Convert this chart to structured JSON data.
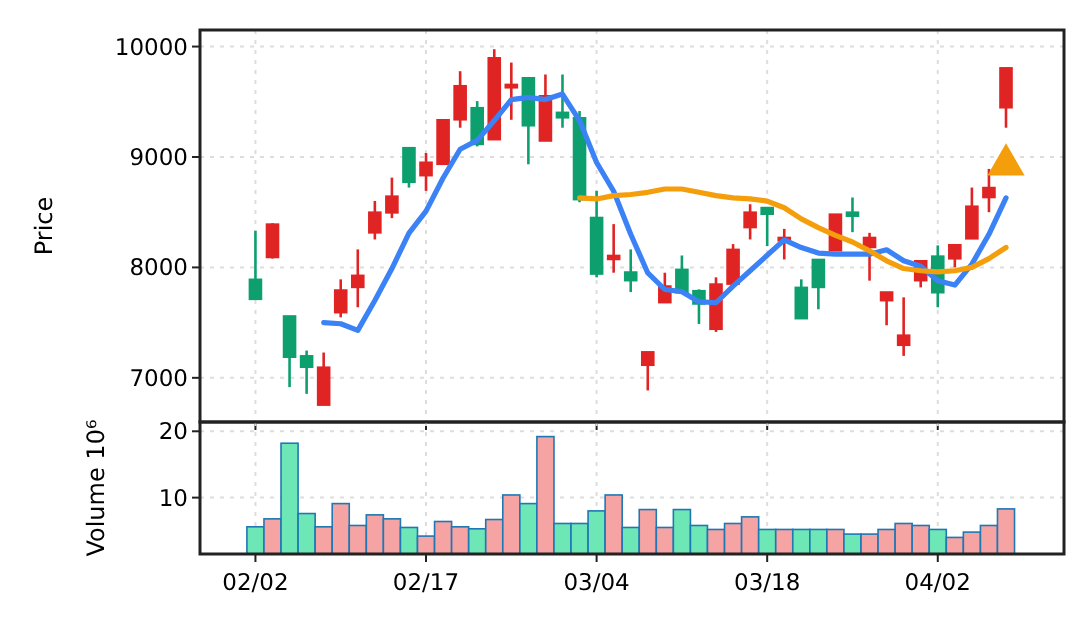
{
  "chart_data": [
    {
      "type": "candlestick",
      "ylabel": "Price",
      "ylim": [
        6600,
        10150
      ],
      "yticks": [
        7000,
        8000,
        9000,
        10000
      ],
      "grid": true,
      "tick_labels": "y",
      "categories": [
        null,
        null,
        null,
        null,
        null,
        null,
        null,
        null,
        null,
        null,
        null,
        null,
        null,
        null,
        null,
        null,
        null,
        null,
        null,
        null,
        null,
        null,
        null,
        null,
        null,
        null,
        null,
        null,
        null,
        null,
        null,
        null,
        null,
        null,
        null,
        null,
        null,
        null,
        null,
        null,
        null,
        null,
        null,
        null,
        null
      ],
      "ohlc": [
        [
          7892,
          8331,
          7711,
          7711
        ],
        [
          8090,
          8400,
          8080,
          8392
        ],
        [
          7560,
          7560,
          6916,
          7187
        ],
        [
          7199,
          7247,
          6855,
          7096
        ],
        [
          6753,
          7229,
          6753,
          7096
        ],
        [
          7590,
          7892,
          7548,
          7795
        ],
        [
          7819,
          8163,
          7639,
          7928
        ],
        [
          8313,
          8602,
          8253,
          8500
        ],
        [
          8494,
          8813,
          8446,
          8645
        ],
        [
          9084,
          9084,
          8723,
          8771
        ],
        [
          8831,
          9036,
          8693,
          8952
        ],
        [
          8934,
          9337,
          8934,
          9337
        ],
        [
          9337,
          9777,
          9265,
          9645
        ],
        [
          9446,
          9506,
          9096,
          9114
        ],
        [
          9157,
          9976,
          9157,
          9898
        ],
        [
          9627,
          9855,
          9337,
          9657
        ],
        [
          9717,
          9717,
          8934,
          9283
        ],
        [
          9145,
          9747,
          9145,
          9554
        ],
        [
          9404,
          9747,
          9265,
          9355
        ],
        [
          9355,
          9416,
          8590,
          8614
        ],
        [
          8452,
          8693,
          7910,
          7940
        ],
        [
          8072,
          8392,
          7952,
          8108
        ],
        [
          7958,
          8163,
          7777,
          7880
        ],
        [
          7114,
          7235,
          6886,
          7235
        ],
        [
          7681,
          7952,
          7681,
          7831
        ],
        [
          7982,
          8108,
          7771,
          7771
        ],
        [
          7789,
          7801,
          7488,
          7669
        ],
        [
          7440,
          7910,
          7416,
          7849
        ],
        [
          7849,
          8211,
          7849,
          8163
        ],
        [
          8361,
          8572,
          8253,
          8500
        ],
        [
          8542,
          8542,
          8193,
          8482
        ],
        [
          8241,
          8349,
          8072,
          8271
        ],
        [
          7819,
          7892,
          7536,
          7536
        ],
        [
          8072,
          8072,
          7621,
          7819
        ],
        [
          8151,
          8482,
          8151,
          8482
        ],
        [
          8500,
          8633,
          8319,
          8464
        ],
        [
          8181,
          8313,
          7880,
          8271
        ],
        [
          7699,
          7777,
          7476,
          7777
        ],
        [
          7295,
          7729,
          7199,
          7386
        ],
        [
          7880,
          8060,
          7819,
          8060
        ],
        [
          8102,
          8199,
          7639,
          7771
        ],
        [
          8078,
          8205,
          8000,
          8205
        ],
        [
          8259,
          8723,
          8259,
          8554
        ],
        [
          8633,
          8892,
          8500,
          8723
        ],
        [
          9446,
          9807,
          9265,
          9807
        ]
      ],
      "colors": [
        "#0e9f6e",
        "#e02424",
        "#0e9f6e",
        "#0e9f6e",
        "#e02424",
        "#e02424",
        "#e02424",
        "#e02424",
        "#e02424",
        "#0e9f6e",
        "#e02424",
        "#e02424",
        "#e02424",
        "#0e9f6e",
        "#e02424",
        "#e02424",
        "#0e9f6e",
        "#e02424",
        "#0e9f6e",
        "#0e9f6e",
        "#0e9f6e",
        "#e02424",
        "#0e9f6e",
        "#e02424",
        "#e02424",
        "#0e9f6e",
        "#0e9f6e",
        "#e02424",
        "#e02424",
        "#e02424",
        "#0e9f6e",
        "#e02424",
        "#0e9f6e",
        "#0e9f6e",
        "#e02424",
        "#0e9f6e",
        "#e02424",
        "#e02424",
        "#e02424",
        "#e02424",
        "#0e9f6e",
        "#e02424",
        "#e02424",
        "#e02424",
        "#e02424"
      ],
      "series": [
        {
          "type": "line",
          "color": "#3b82f6",
          "values": [
            null,
            null,
            null,
            null,
            7500,
            7490,
            7430,
            7700,
            7990,
            8310,
            8510,
            8810,
            9070,
            9150,
            9330,
            9520,
            9540,
            9520,
            9570,
            9330,
            8950,
            8690,
            8300,
            7950,
            7800,
            7780,
            7690,
            7680,
            7830,
            7970,
            8110,
            8250,
            8180,
            8130,
            8120,
            8120,
            8120,
            8160,
            8060,
            8010,
            7880,
            7840,
            8030,
            8300,
            8630
          ]
        },
        {
          "type": "line",
          "color": "#f59e0b",
          "values": [
            null,
            null,
            null,
            null,
            null,
            null,
            null,
            null,
            null,
            null,
            null,
            null,
            null,
            null,
            null,
            null,
            null,
            null,
            null,
            8630,
            8620,
            8650,
            8660,
            8680,
            8710,
            8710,
            8680,
            8650,
            8630,
            8620,
            8600,
            8540,
            8440,
            8360,
            8290,
            8230,
            8150,
            8060,
            7990,
            7970,
            7960,
            7970,
            8000,
            8080,
            8180
          ]
        },
        {
          "type": "scatter",
          "marker": "triangle",
          "color": "#f59e0b",
          "values": [
            null,
            null,
            null,
            null,
            null,
            null,
            null,
            null,
            null,
            null,
            null,
            null,
            null,
            null,
            null,
            null,
            null,
            null,
            null,
            null,
            null,
            null,
            null,
            null,
            null,
            null,
            null,
            null,
            null,
            null,
            null,
            null,
            null,
            null,
            null,
            null,
            null,
            null,
            null,
            null,
            null,
            null,
            null,
            null,
            8930
          ]
        }
      ]
    },
    {
      "type": "bar",
      "ylabel": "Volume  10⁶",
      "ylim": [
        1.5,
        21.4
      ],
      "yticks": [
        10,
        20
      ],
      "grid": true,
      "categories": [
        "02/02",
        null,
        null,
        null,
        null,
        null,
        null,
        null,
        null,
        null,
        "02/17",
        null,
        null,
        null,
        null,
        null,
        null,
        null,
        null,
        null,
        "03/04",
        null,
        null,
        null,
        null,
        null,
        null,
        null,
        null,
        null,
        "03/18",
        null,
        null,
        null,
        null,
        null,
        null,
        null,
        null,
        null,
        "04/02",
        null,
        null,
        null,
        null
      ],
      "values": [
        5.6,
        6.8,
        18.2,
        7.6,
        5.6,
        9.1,
        5.8,
        7.4,
        6.8,
        5.5,
        4.2,
        6.4,
        5.6,
        5.3,
        6.7,
        10.4,
        9.1,
        19.2,
        6.1,
        6.1,
        8.0,
        10.4,
        5.5,
        8.2,
        5.5,
        8.2,
        5.8,
        5.2,
        6.1,
        7.1,
        5.2,
        5.2,
        5.2,
        5.2,
        5.2,
        4.5,
        4.5,
        5.2,
        6.1,
        5.8,
        5.2,
        4.0,
        4.8,
        5.8,
        8.3
      ],
      "colors": [
        "#6ee7b7",
        "#f5a3a3",
        "#6ee7b7",
        "#6ee7b7",
        "#f5a3a3",
        "#f5a3a3",
        "#f5a3a3",
        "#f5a3a3",
        "#f5a3a3",
        "#6ee7b7",
        "#f5a3a3",
        "#f5a3a3",
        "#f5a3a3",
        "#6ee7b7",
        "#f5a3a3",
        "#f5a3a3",
        "#6ee7b7",
        "#f5a3a3",
        "#6ee7b7",
        "#6ee7b7",
        "#6ee7b7",
        "#f5a3a3",
        "#6ee7b7",
        "#f5a3a3",
        "#f5a3a3",
        "#6ee7b7",
        "#6ee7b7",
        "#f5a3a3",
        "#f5a3a3",
        "#f5a3a3",
        "#6ee7b7",
        "#f5a3a3",
        "#6ee7b7",
        "#6ee7b7",
        "#f5a3a3",
        "#6ee7b7",
        "#f5a3a3",
        "#f5a3a3",
        "#f5a3a3",
        "#f5a3a3",
        "#6ee7b7",
        "#f5a3a3",
        "#f5a3a3",
        "#f5a3a3",
        "#f5a3a3"
      ]
    }
  ]
}
